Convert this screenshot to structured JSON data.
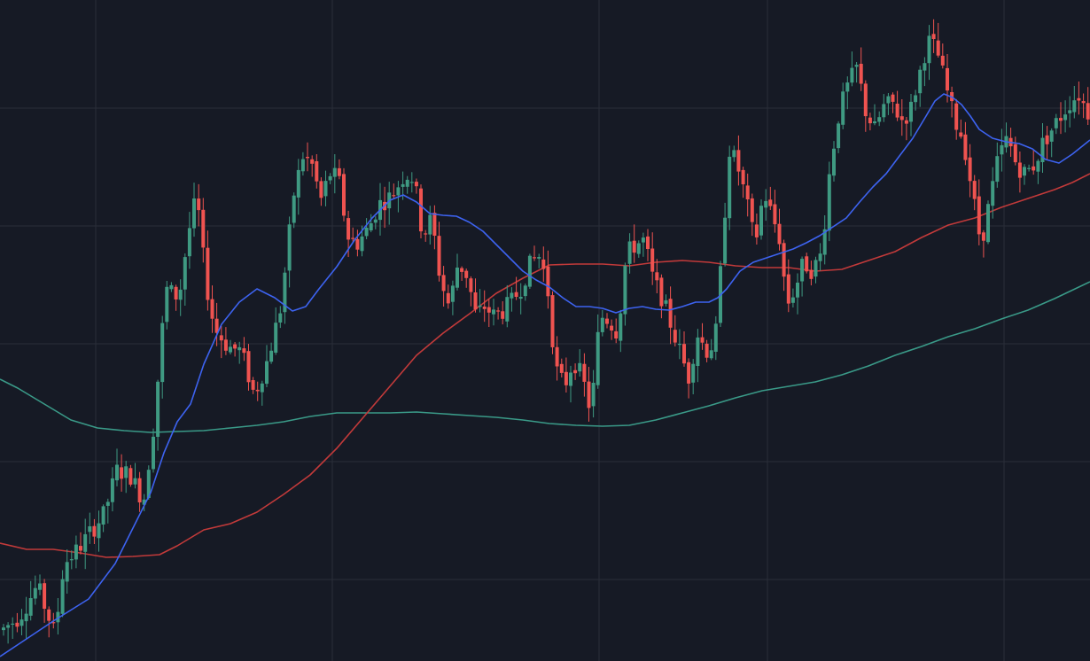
{
  "chart_data": {
    "type": "candlestick",
    "title": "",
    "grid": true,
    "ylim": [
      0,
      746
    ],
    "colors": {
      "background": "#161a25",
      "grid": "#2a2e39",
      "up": "#3f9a82",
      "down": "#ef5350",
      "ma_fast": "#3d63f0",
      "ma_mid": "#c23a3a",
      "ma_slow": "#3a9a88"
    },
    "price_knots": [
      [
        0,
        35
      ],
      [
        20,
        50
      ],
      [
        40,
        85
      ],
      [
        60,
        30
      ],
      [
        70,
        110
      ],
      [
        85,
        125
      ],
      [
        100,
        145
      ],
      [
        115,
        165
      ],
      [
        130,
        215
      ],
      [
        145,
        210
      ],
      [
        160,
        180
      ],
      [
        172,
        270
      ],
      [
        185,
        420
      ],
      [
        200,
        410
      ],
      [
        210,
        480
      ],
      [
        220,
        525
      ],
      [
        230,
        430
      ],
      [
        240,
        375
      ],
      [
        255,
        355
      ],
      [
        270,
        350
      ],
      [
        285,
        300
      ],
      [
        300,
        340
      ],
      [
        315,
        400
      ],
      [
        330,
        530
      ],
      [
        340,
        570
      ],
      [
        350,
        560
      ],
      [
        360,
        520
      ],
      [
        370,
        550
      ],
      [
        380,
        545
      ],
      [
        390,
        480
      ],
      [
        400,
        470
      ],
      [
        415,
        490
      ],
      [
        425,
        515
      ],
      [
        440,
        525
      ],
      [
        455,
        550
      ],
      [
        465,
        545
      ],
      [
        475,
        480
      ],
      [
        485,
        500
      ],
      [
        495,
        430
      ],
      [
        505,
        400
      ],
      [
        515,
        450
      ],
      [
        525,
        435
      ],
      [
        535,
        390
      ],
      [
        545,
        400
      ],
      [
        555,
        390
      ],
      [
        565,
        395
      ],
      [
        575,
        405
      ],
      [
        585,
        420
      ],
      [
        595,
        445
      ],
      [
        605,
        460
      ],
      [
        615,
        430
      ],
      [
        625,
        330
      ],
      [
        635,
        310
      ],
      [
        645,
        340
      ],
      [
        655,
        320
      ],
      [
        665,
        280
      ],
      [
        675,
        390
      ],
      [
        685,
        385
      ],
      [
        695,
        370
      ],
      [
        705,
        460
      ],
      [
        715,
        470
      ],
      [
        725,
        475
      ],
      [
        735,
        430
      ],
      [
        745,
        410
      ],
      [
        755,
        380
      ],
      [
        765,
        350
      ],
      [
        775,
        320
      ],
      [
        785,
        370
      ],
      [
        795,
        350
      ],
      [
        805,
        360
      ],
      [
        815,
        490
      ],
      [
        820,
        580
      ],
      [
        830,
        560
      ],
      [
        840,
        520
      ],
      [
        850,
        470
      ],
      [
        860,
        530
      ],
      [
        870,
        500
      ],
      [
        880,
        470
      ],
      [
        885,
        400
      ],
      [
        895,
        420
      ],
      [
        905,
        450
      ],
      [
        915,
        440
      ],
      [
        925,
        460
      ],
      [
        935,
        560
      ],
      [
        945,
        620
      ],
      [
        955,
        650
      ],
      [
        965,
        670
      ],
      [
        975,
        620
      ],
      [
        985,
        600
      ],
      [
        995,
        625
      ],
      [
        1005,
        630
      ],
      [
        1015,
        610
      ],
      [
        1025,
        620
      ],
      [
        1035,
        660
      ],
      [
        1045,
        700
      ],
      [
        1055,
        690
      ],
      [
        1065,
        650
      ],
      [
        1075,
        610
      ],
      [
        1085,
        590
      ],
      [
        1095,
        530
      ],
      [
        1105,
        470
      ],
      [
        1115,
        520
      ],
      [
        1125,
        570
      ],
      [
        1135,
        590
      ],
      [
        1145,
        560
      ],
      [
        1155,
        550
      ],
      [
        1165,
        560
      ],
      [
        1175,
        585
      ],
      [
        1185,
        600
      ],
      [
        1195,
        615
      ],
      [
        1205,
        630
      ],
      [
        1215,
        640
      ],
      [
        1225,
        620
      ],
      [
        1230,
        615
      ]
    ],
    "ma_fast": [
      [
        0,
        5
      ],
      [
        30,
        25
      ],
      [
        60,
        45
      ],
      [
        100,
        70
      ],
      [
        130,
        110
      ],
      [
        150,
        150
      ],
      [
        170,
        190
      ],
      [
        185,
        235
      ],
      [
        200,
        270
      ],
      [
        215,
        290
      ],
      [
        230,
        335
      ],
      [
        250,
        380
      ],
      [
        270,
        405
      ],
      [
        290,
        420
      ],
      [
        310,
        410
      ],
      [
        330,
        395
      ],
      [
        345,
        400
      ],
      [
        360,
        420
      ],
      [
        380,
        445
      ],
      [
        400,
        475
      ],
      [
        420,
        500
      ],
      [
        440,
        520
      ],
      [
        455,
        526
      ],
      [
        470,
        518
      ],
      [
        485,
        505
      ],
      [
        500,
        503
      ],
      [
        515,
        502
      ],
      [
        530,
        495
      ],
      [
        545,
        485
      ],
      [
        560,
        470
      ],
      [
        575,
        455
      ],
      [
        590,
        440
      ],
      [
        605,
        430
      ],
      [
        620,
        422
      ],
      [
        635,
        410
      ],
      [
        650,
        400
      ],
      [
        665,
        400
      ],
      [
        680,
        398
      ],
      [
        695,
        393
      ],
      [
        710,
        398
      ],
      [
        725,
        400
      ],
      [
        740,
        397
      ],
      [
        755,
        396
      ],
      [
        770,
        400
      ],
      [
        785,
        405
      ],
      [
        800,
        405
      ],
      [
        810,
        410
      ],
      [
        820,
        420
      ],
      [
        835,
        440
      ],
      [
        850,
        450
      ],
      [
        865,
        455
      ],
      [
        880,
        460
      ],
      [
        895,
        465
      ],
      [
        910,
        472
      ],
      [
        925,
        480
      ],
      [
        940,
        490
      ],
      [
        955,
        500
      ],
      [
        970,
        518
      ],
      [
        985,
        535
      ],
      [
        1000,
        550
      ],
      [
        1015,
        570
      ],
      [
        1030,
        590
      ],
      [
        1045,
        615
      ],
      [
        1055,
        632
      ],
      [
        1065,
        640
      ],
      [
        1075,
        636
      ],
      [
        1085,
        628
      ],
      [
        1095,
        615
      ],
      [
        1105,
        600
      ],
      [
        1120,
        590
      ],
      [
        1135,
        586
      ],
      [
        1150,
        584
      ],
      [
        1165,
        578
      ],
      [
        1180,
        566
      ],
      [
        1195,
        562
      ],
      [
        1210,
        572
      ],
      [
        1230,
        588
      ]
    ],
    "ma_mid": [
      [
        0,
        133
      ],
      [
        30,
        126
      ],
      [
        60,
        126
      ],
      [
        90,
        122
      ],
      [
        120,
        117
      ],
      [
        150,
        118
      ],
      [
        180,
        120
      ],
      [
        200,
        130
      ],
      [
        230,
        148
      ],
      [
        260,
        155
      ],
      [
        290,
        168
      ],
      [
        320,
        188
      ],
      [
        350,
        210
      ],
      [
        380,
        240
      ],
      [
        410,
        275
      ],
      [
        440,
        310
      ],
      [
        470,
        345
      ],
      [
        500,
        370
      ],
      [
        530,
        392
      ],
      [
        560,
        415
      ],
      [
        590,
        432
      ],
      [
        620,
        447
      ],
      [
        650,
        448
      ],
      [
        680,
        448
      ],
      [
        710,
        446
      ],
      [
        740,
        450
      ],
      [
        770,
        452
      ],
      [
        800,
        450
      ],
      [
        830,
        446
      ],
      [
        860,
        444
      ],
      [
        890,
        444
      ],
      [
        920,
        440
      ],
      [
        950,
        442
      ],
      [
        980,
        452
      ],
      [
        1010,
        462
      ],
      [
        1040,
        478
      ],
      [
        1070,
        492
      ],
      [
        1100,
        500
      ],
      [
        1130,
        512
      ],
      [
        1160,
        522
      ],
      [
        1190,
        532
      ],
      [
        1210,
        540
      ],
      [
        1230,
        550
      ]
    ],
    "ma_slow": [
      [
        0,
        318
      ],
      [
        20,
        308
      ],
      [
        50,
        290
      ],
      [
        80,
        272
      ],
      [
        110,
        263
      ],
      [
        140,
        260
      ],
      [
        170,
        258
      ],
      [
        200,
        259
      ],
      [
        230,
        260
      ],
      [
        260,
        263
      ],
      [
        290,
        266
      ],
      [
        320,
        270
      ],
      [
        350,
        276
      ],
      [
        380,
        280
      ],
      [
        410,
        280
      ],
      [
        440,
        280
      ],
      [
        470,
        281
      ],
      [
        500,
        279
      ],
      [
        530,
        277
      ],
      [
        560,
        275
      ],
      [
        590,
        272
      ],
      [
        620,
        268
      ],
      [
        650,
        266
      ],
      [
        680,
        265
      ],
      [
        710,
        266
      ],
      [
        740,
        272
      ],
      [
        770,
        280
      ],
      [
        800,
        288
      ],
      [
        830,
        297
      ],
      [
        860,
        305
      ],
      [
        890,
        310
      ],
      [
        920,
        315
      ],
      [
        950,
        323
      ],
      [
        980,
        333
      ],
      [
        1010,
        345
      ],
      [
        1040,
        355
      ],
      [
        1070,
        366
      ],
      [
        1100,
        375
      ],
      [
        1130,
        386
      ],
      [
        1160,
        396
      ],
      [
        1190,
        409
      ],
      [
        1230,
        428
      ]
    ]
  }
}
